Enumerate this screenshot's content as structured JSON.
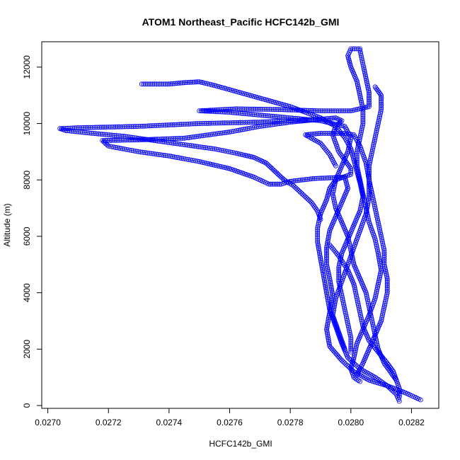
{
  "chart_data": {
    "type": "scatter",
    "title": "ATOM1 Northeast_Pacific HCFC142b_GMI",
    "xlabel": "HCFC142b_GMI",
    "ylabel": "Altitude (m)",
    "xlim": [
      0.02698,
      0.02829
    ],
    "ylim": [
      -100,
      12900
    ],
    "xticks": [
      0.027,
      0.0272,
      0.0274,
      0.0276,
      0.0278,
      0.028,
      0.0282
    ],
    "xtick_labels": [
      "0.0270",
      "0.0272",
      "0.0274",
      "0.0276",
      "0.0278",
      "0.0280",
      "0.0282"
    ],
    "yticks": [
      0,
      2000,
      4000,
      6000,
      8000,
      10000,
      12000
    ],
    "ytick_labels": [
      "0",
      "2000",
      "4000",
      "6000",
      "8000",
      "10000",
      "12000"
    ],
    "marker": "open-circle",
    "connected": true,
    "series_color": "#0000ff",
    "series": [
      {
        "points": [
          [
            0.02816,
            150
          ],
          [
            0.02815,
            400
          ],
          [
            0.02812,
            700
          ],
          [
            0.02808,
            1000
          ],
          [
            0.02803,
            1300
          ],
          [
            0.02799,
            1700
          ],
          [
            0.02797,
            2200
          ],
          [
            0.02795,
            2800
          ],
          [
            0.02793,
            3400
          ],
          [
            0.02792,
            4000
          ],
          [
            0.02791,
            4600
          ],
          [
            0.0279,
            5200
          ],
          [
            0.02789,
            5800
          ],
          [
            0.02789,
            6300
          ],
          [
            0.0279,
            6800
          ],
          [
            0.02792,
            7300
          ],
          [
            0.02793,
            7700
          ],
          [
            0.02795,
            8000
          ],
          [
            0.028,
            8200
          ],
          [
            0.028,
            8400
          ],
          [
            0.02798,
            8700
          ],
          [
            0.02796,
            9000
          ],
          [
            0.02795,
            9300
          ],
          [
            0.02794,
            9600
          ],
          [
            0.02795,
            9900
          ],
          [
            0.02797,
            10100
          ],
          [
            0.02795,
            10200
          ],
          [
            0.0279,
            10150
          ],
          [
            0.0277,
            10050
          ],
          [
            0.0275,
            10000
          ],
          [
            0.0273,
            9900
          ],
          [
            0.0271,
            9850
          ],
          [
            0.02704,
            9820
          ],
          [
            0.02706,
            9750
          ],
          [
            0.02715,
            9650
          ],
          [
            0.02725,
            9550
          ],
          [
            0.02735,
            9400
          ],
          [
            0.02745,
            9250
          ],
          [
            0.02755,
            9100
          ],
          [
            0.02762,
            8950
          ],
          [
            0.02768,
            8800
          ],
          [
            0.02772,
            8600
          ],
          [
            0.02774,
            8400
          ],
          [
            0.02776,
            8200
          ],
          [
            0.02778,
            8000
          ],
          [
            0.02781,
            7800
          ],
          [
            0.02784,
            7500
          ],
          [
            0.02787,
            7200
          ],
          [
            0.02789,
            6900
          ],
          [
            0.0279,
            6600
          ]
        ]
      },
      {
        "points": [
          [
            0.02823,
            200
          ],
          [
            0.02818,
            450
          ],
          [
            0.02812,
            700
          ],
          [
            0.02806,
            900
          ],
          [
            0.02801,
            1200
          ],
          [
            0.02797,
            1600
          ],
          [
            0.02793,
            2100
          ],
          [
            0.02792,
            2700
          ],
          [
            0.02793,
            3300
          ],
          [
            0.02794,
            3900
          ],
          [
            0.02793,
            4500
          ],
          [
            0.02792,
            5000
          ],
          [
            0.02792,
            5600
          ],
          [
            0.02793,
            6200
          ],
          [
            0.02795,
            6700
          ],
          [
            0.02797,
            7200
          ],
          [
            0.02799,
            7700
          ],
          [
            0.02798,
            8100
          ],
          [
            0.02788,
            8050
          ],
          [
            0.0278,
            7950
          ],
          [
            0.02777,
            7850
          ],
          [
            0.02773,
            7850
          ],
          [
            0.02768,
            8100
          ],
          [
            0.0276,
            8400
          ],
          [
            0.0275,
            8650
          ],
          [
            0.0274,
            8850
          ],
          [
            0.0273,
            9000
          ],
          [
            0.0272,
            9200
          ],
          [
            0.02718,
            9400
          ],
          [
            0.0273,
            9420
          ],
          [
            0.02745,
            9480
          ],
          [
            0.0276,
            9700
          ],
          [
            0.0277,
            9900
          ],
          [
            0.0278,
            10050
          ],
          [
            0.0279,
            10150
          ]
        ]
      },
      {
        "points": [
          [
            0.02803,
            850
          ],
          [
            0.02801,
            1000
          ],
          [
            0.028,
            1300
          ],
          [
            0.02801,
            1700
          ],
          [
            0.02802,
            2200
          ],
          [
            0.02804,
            2700
          ],
          [
            0.02806,
            3200
          ],
          [
            0.02808,
            3800
          ],
          [
            0.02809,
            4300
          ],
          [
            0.0281,
            4800
          ],
          [
            0.02809,
            5400
          ],
          [
            0.02808,
            5900
          ],
          [
            0.02806,
            6500
          ],
          [
            0.02805,
            7000
          ],
          [
            0.02804,
            7500
          ],
          [
            0.02803,
            8000
          ],
          [
            0.02802,
            8500
          ],
          [
            0.02802,
            9000
          ],
          [
            0.02803,
            9500
          ],
          [
            0.02804,
            10000
          ],
          [
            0.02804,
            10500
          ],
          [
            0.02803,
            11000
          ],
          [
            0.02802,
            11500
          ],
          [
            0.028,
            12000
          ],
          [
            0.02799,
            12400
          ],
          [
            0.028,
            12650
          ],
          [
            0.02803,
            12650
          ]
        ]
      },
      {
        "points": [
          [
            0.02803,
            12600
          ],
          [
            0.02804,
            12100
          ],
          [
            0.02805,
            11600
          ],
          [
            0.02806,
            11100
          ],
          [
            0.02806,
            10600
          ],
          [
            0.028,
            10450
          ],
          [
            0.0279,
            10450
          ],
          [
            0.02775,
            10500
          ],
          [
            0.02762,
            10520
          ],
          [
            0.02755,
            10480
          ],
          [
            0.0275,
            10450
          ],
          [
            0.0276,
            10400
          ],
          [
            0.0277,
            10300
          ],
          [
            0.0278,
            10200
          ],
          [
            0.0279,
            10100
          ],
          [
            0.02798,
            9900
          ],
          [
            0.028,
            9500
          ],
          [
            0.02799,
            9000
          ],
          [
            0.02797,
            8500
          ],
          [
            0.02795,
            8000
          ],
          [
            0.02794,
            7500
          ],
          [
            0.02795,
            7000
          ],
          [
            0.02797,
            6500
          ],
          [
            0.02799,
            6000
          ],
          [
            0.028,
            5500
          ],
          [
            0.02801,
            5000
          ],
          [
            0.02803,
            4500
          ],
          [
            0.02805,
            4000
          ],
          [
            0.02806,
            3500
          ],
          [
            0.02807,
            3000
          ],
          [
            0.02808,
            2500
          ],
          [
            0.02809,
            2000
          ],
          [
            0.02811,
            1500
          ],
          [
            0.02813,
            1200
          ],
          [
            0.02815,
            900
          ]
        ]
      },
      {
        "points": [
          [
            0.02808,
            11300
          ],
          [
            0.0281,
            11000
          ],
          [
            0.0281,
            10500
          ],
          [
            0.02809,
            10000
          ],
          [
            0.02808,
            9500
          ],
          [
            0.02807,
            9000
          ],
          [
            0.02806,
            8500
          ],
          [
            0.02806,
            8000
          ],
          [
            0.02807,
            7500
          ],
          [
            0.02808,
            7000
          ],
          [
            0.02809,
            6500
          ],
          [
            0.0281,
            6000
          ],
          [
            0.02811,
            5500
          ],
          [
            0.02811,
            5000
          ],
          [
            0.02812,
            4500
          ],
          [
            0.02812,
            4000
          ],
          [
            0.02811,
            3500
          ],
          [
            0.0281,
            3000
          ],
          [
            0.02808,
            2500
          ],
          [
            0.02806,
            2000
          ],
          [
            0.02804,
            1500
          ],
          [
            0.02802,
            1100
          ]
        ]
      },
      {
        "points": [
          [
            0.02731,
            11400
          ],
          [
            0.0274,
            11400
          ],
          [
            0.02745,
            11450
          ],
          [
            0.0275,
            11480
          ],
          [
            0.02755,
            11350
          ],
          [
            0.0276,
            11200
          ],
          [
            0.02765,
            11050
          ],
          [
            0.0277,
            10900
          ],
          [
            0.02775,
            10750
          ],
          [
            0.0278,
            10600
          ],
          [
            0.02785,
            10400
          ],
          [
            0.0279,
            10200
          ],
          [
            0.02795,
            9900
          ],
          [
            0.02798,
            9500
          ],
          [
            0.028,
            9100
          ],
          [
            0.02801,
            8700
          ],
          [
            0.02802,
            8300
          ],
          [
            0.02803,
            7900
          ],
          [
            0.02804,
            7400
          ],
          [
            0.02803,
            6900
          ],
          [
            0.02801,
            6400
          ],
          [
            0.02799,
            5900
          ],
          [
            0.02797,
            5400
          ],
          [
            0.02796,
            4900
          ],
          [
            0.02796,
            4400
          ],
          [
            0.02797,
            3900
          ],
          [
            0.02798,
            3400
          ],
          [
            0.02799,
            2900
          ],
          [
            0.028,
            2400
          ],
          [
            0.028,
            1900
          ]
        ]
      },
      {
        "points": [
          [
            0.02798,
            2000
          ],
          [
            0.02796,
            2600
          ],
          [
            0.02794,
            3200
          ],
          [
            0.02795,
            3800
          ],
          [
            0.02797,
            4400
          ],
          [
            0.02799,
            5000
          ],
          [
            0.02801,
            5600
          ],
          [
            0.02803,
            6200
          ],
          [
            0.02805,
            6800
          ],
          [
            0.02806,
            7400
          ],
          [
            0.02806,
            8000
          ],
          [
            0.02805,
            8600
          ],
          [
            0.02803,
            9200
          ],
          [
            0.02801,
            9600
          ],
          [
            0.02798,
            9650
          ],
          [
            0.0279,
            9650
          ],
          [
            0.02785,
            9600
          ],
          [
            0.0279,
            9300
          ],
          [
            0.02793,
            8900
          ],
          [
            0.02795,
            8500
          ]
        ]
      },
      {
        "points": [
          [
            0.02793,
            5700
          ],
          [
            0.02796,
            5300
          ],
          [
            0.02799,
            4800
          ],
          [
            0.02801,
            4300
          ],
          [
            0.02802,
            3800
          ],
          [
            0.02803,
            3300
          ],
          [
            0.02804,
            2800
          ],
          [
            0.02806,
            2300
          ],
          [
            0.02809,
            1900
          ],
          [
            0.02812,
            1500
          ],
          [
            0.02814,
            1200
          ],
          [
            0.02815,
            900
          ],
          [
            0.02816,
            600
          ],
          [
            0.02816,
            300
          ]
        ]
      }
    ]
  }
}
